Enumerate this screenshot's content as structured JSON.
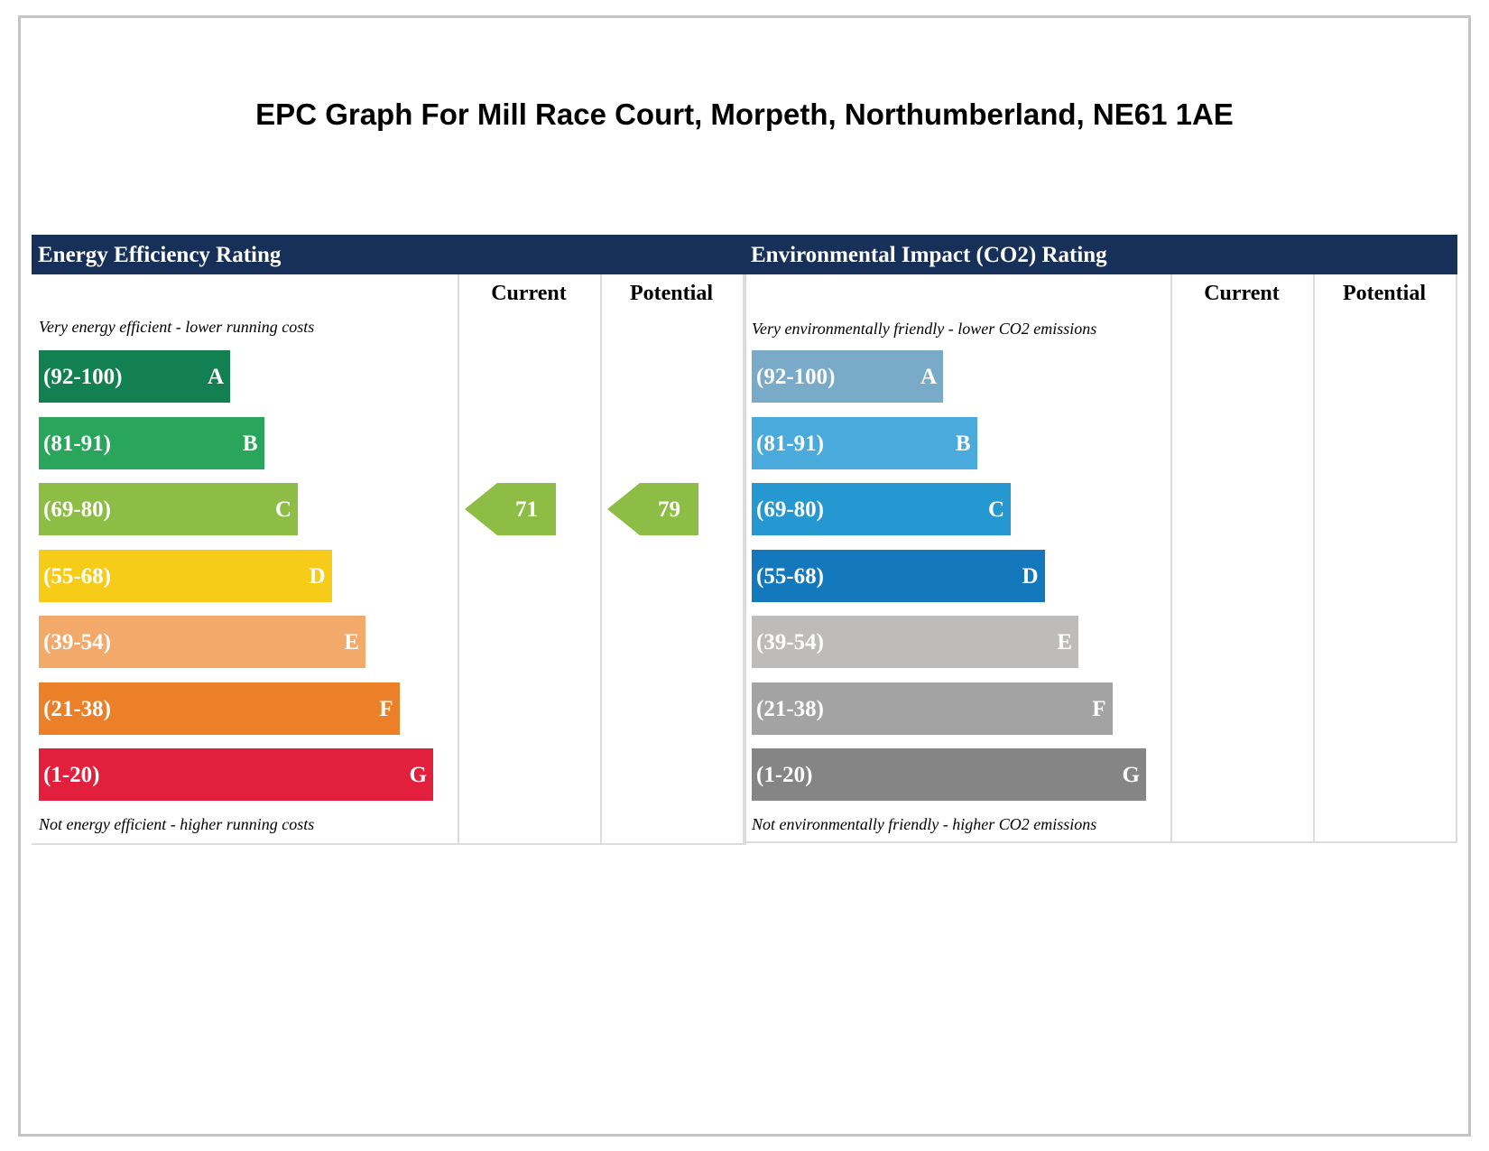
{
  "page_title": "EPC Graph For Mill Race Court, Morpeth, Northumberland, NE61 1AE",
  "chart_data": [
    {
      "type": "bar",
      "title": "Energy Efficiency Rating",
      "column_headers": [
        "Current",
        "Potential"
      ],
      "top_note": "Very energy efficient - lower running costs",
      "bottom_note": "Not energy efficient - higher running costs",
      "bands": [
        {
          "range": "(92-100)",
          "letter": "A",
          "color": "#138051"
        },
        {
          "range": "(81-91)",
          "letter": "B",
          "color": "#2aa55c"
        },
        {
          "range": "(69-80)",
          "letter": "C",
          "color": "#8dbd44"
        },
        {
          "range": "(55-68)",
          "letter": "D",
          "color": "#f6cc18"
        },
        {
          "range": "(39-54)",
          "letter": "E",
          "color": "#f2a96a"
        },
        {
          "range": "(21-38)",
          "letter": "F",
          "color": "#ec8029"
        },
        {
          "range": "(1-20)",
          "letter": "G",
          "color": "#e21f3c"
        }
      ],
      "ratings": [
        {
          "column": "Current",
          "value": "71",
          "band": "C",
          "color": "#8dbd44"
        },
        {
          "column": "Potential",
          "value": "79",
          "band": "C",
          "color": "#8dbd44"
        }
      ]
    },
    {
      "type": "bar",
      "title": "Environmental Impact (CO2) Rating",
      "column_headers": [
        "Current",
        "Potential"
      ],
      "top_note": "Very environmentally friendly - lower CO2 emissions",
      "bottom_note": "Not environmentally friendly - higher CO2 emissions",
      "bands": [
        {
          "range": "(92-100)",
          "letter": "A",
          "color": "#79aac8"
        },
        {
          "range": "(81-91)",
          "letter": "B",
          "color": "#4aaadb"
        },
        {
          "range": "(69-80)",
          "letter": "C",
          "color": "#2598d2"
        },
        {
          "range": "(55-68)",
          "letter": "D",
          "color": "#1378bc"
        },
        {
          "range": "(39-54)",
          "letter": "E",
          "color": "#bdbcbb"
        },
        {
          "range": "(21-38)",
          "letter": "F",
          "color": "#a3a3a3"
        },
        {
          "range": "(1-20)",
          "letter": "G",
          "color": "#858585"
        }
      ],
      "ratings": []
    }
  ]
}
